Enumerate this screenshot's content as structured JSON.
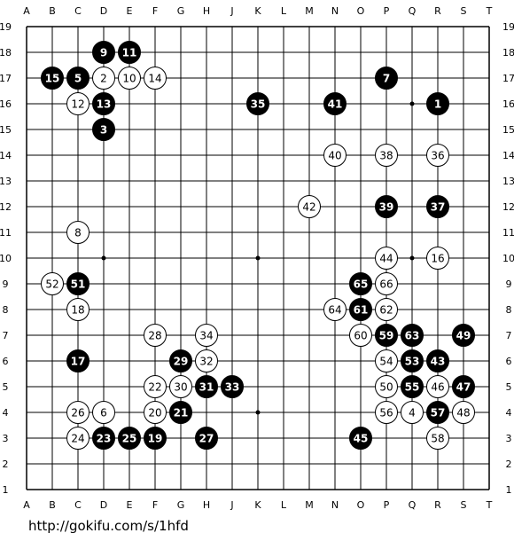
{
  "board": {
    "size": 19,
    "columns": [
      "A",
      "B",
      "C",
      "D",
      "E",
      "F",
      "G",
      "H",
      "J",
      "K",
      "L",
      "M",
      "N",
      "O",
      "P",
      "Q",
      "R",
      "S",
      "T"
    ],
    "rows": [
      "19",
      "18",
      "17",
      "16",
      "15",
      "14",
      "13",
      "12",
      "11",
      "10",
      "9",
      "8",
      "7",
      "6",
      "5",
      "4",
      "3",
      "2",
      "1"
    ],
    "star_points": [
      "D16",
      "K16",
      "Q16",
      "D10",
      "K10",
      "Q10",
      "D4",
      "K4",
      "Q4"
    ],
    "colors": {
      "black_stone": "#000000",
      "white_stone": "#ffffff",
      "line": "#000000",
      "background": "#ffffff"
    }
  },
  "stones": [
    {
      "n": "1",
      "c": "B",
      "pt": "R16"
    },
    {
      "n": "2",
      "c": "W",
      "pt": "D17"
    },
    {
      "n": "3",
      "c": "B",
      "pt": "D15"
    },
    {
      "n": "4",
      "c": "W",
      "pt": "Q4"
    },
    {
      "n": "5",
      "c": "B",
      "pt": "C17"
    },
    {
      "n": "6",
      "c": "W",
      "pt": "D4"
    },
    {
      "n": "7",
      "c": "B",
      "pt": "P17"
    },
    {
      "n": "8",
      "c": "W",
      "pt": "C11"
    },
    {
      "n": "9",
      "c": "B",
      "pt": "D18"
    },
    {
      "n": "10",
      "c": "W",
      "pt": "E17"
    },
    {
      "n": "11",
      "c": "B",
      "pt": "E18"
    },
    {
      "n": "12",
      "c": "W",
      "pt": "C16"
    },
    {
      "n": "13",
      "c": "B",
      "pt": "D16"
    },
    {
      "n": "14",
      "c": "W",
      "pt": "F17"
    },
    {
      "n": "15",
      "c": "B",
      "pt": "B17"
    },
    {
      "n": "16",
      "c": "W",
      "pt": "R10"
    },
    {
      "n": "17",
      "c": "B",
      "pt": "C6"
    },
    {
      "n": "18",
      "c": "W",
      "pt": "C8"
    },
    {
      "n": "19",
      "c": "B",
      "pt": "F3"
    },
    {
      "n": "20",
      "c": "W",
      "pt": "F4"
    },
    {
      "n": "21",
      "c": "B",
      "pt": "G4"
    },
    {
      "n": "22",
      "c": "W",
      "pt": "F5"
    },
    {
      "n": "23",
      "c": "B",
      "pt": "D3"
    },
    {
      "n": "24",
      "c": "W",
      "pt": "C3"
    },
    {
      "n": "25",
      "c": "B",
      "pt": "E3"
    },
    {
      "n": "26",
      "c": "W",
      "pt": "C4"
    },
    {
      "n": "27",
      "c": "B",
      "pt": "H3"
    },
    {
      "n": "28",
      "c": "W",
      "pt": "F7"
    },
    {
      "n": "29",
      "c": "B",
      "pt": "G6"
    },
    {
      "n": "30",
      "c": "W",
      "pt": "G5"
    },
    {
      "n": "31",
      "c": "B",
      "pt": "H5"
    },
    {
      "n": "32",
      "c": "W",
      "pt": "H6"
    },
    {
      "n": "33",
      "c": "B",
      "pt": "J5"
    },
    {
      "n": "34",
      "c": "W",
      "pt": "H7"
    },
    {
      "n": "35",
      "c": "B",
      "pt": "K16"
    },
    {
      "n": "36",
      "c": "W",
      "pt": "R14"
    },
    {
      "n": "37",
      "c": "B",
      "pt": "R12"
    },
    {
      "n": "38",
      "c": "W",
      "pt": "P14"
    },
    {
      "n": "39",
      "c": "B",
      "pt": "P12"
    },
    {
      "n": "40",
      "c": "W",
      "pt": "N14"
    },
    {
      "n": "41",
      "c": "B",
      "pt": "N16"
    },
    {
      "n": "42",
      "c": "W",
      "pt": "M12"
    },
    {
      "n": "43",
      "c": "B",
      "pt": "R6"
    },
    {
      "n": "44",
      "c": "W",
      "pt": "P10"
    },
    {
      "n": "45",
      "c": "B",
      "pt": "O3"
    },
    {
      "n": "46",
      "c": "W",
      "pt": "R5"
    },
    {
      "n": "47",
      "c": "B",
      "pt": "S5"
    },
    {
      "n": "48",
      "c": "W",
      "pt": "S4"
    },
    {
      "n": "49",
      "c": "B",
      "pt": "S7"
    },
    {
      "n": "50",
      "c": "W",
      "pt": "P5"
    },
    {
      "n": "51",
      "c": "B",
      "pt": "C9"
    },
    {
      "n": "52",
      "c": "W",
      "pt": "B9"
    },
    {
      "n": "53",
      "c": "B",
      "pt": "Q6"
    },
    {
      "n": "54",
      "c": "W",
      "pt": "P6"
    },
    {
      "n": "55",
      "c": "B",
      "pt": "Q5"
    },
    {
      "n": "56",
      "c": "W",
      "pt": "P4"
    },
    {
      "n": "57",
      "c": "B",
      "pt": "R4"
    },
    {
      "n": "58",
      "c": "W",
      "pt": "R3"
    },
    {
      "n": "59",
      "c": "B",
      "pt": "P7"
    },
    {
      "n": "60",
      "c": "W",
      "pt": "O7"
    },
    {
      "n": "61",
      "c": "B",
      "pt": "O8"
    },
    {
      "n": "62",
      "c": "W",
      "pt": "P8"
    },
    {
      "n": "63",
      "c": "B",
      "pt": "Q7"
    },
    {
      "n": "64",
      "c": "W",
      "pt": "N8"
    },
    {
      "n": "65",
      "c": "B",
      "pt": "O9"
    },
    {
      "n": "66",
      "c": "W",
      "pt": "P9"
    }
  ],
  "footer": {
    "url": "http://gokifu.com/s/1hfd"
  }
}
